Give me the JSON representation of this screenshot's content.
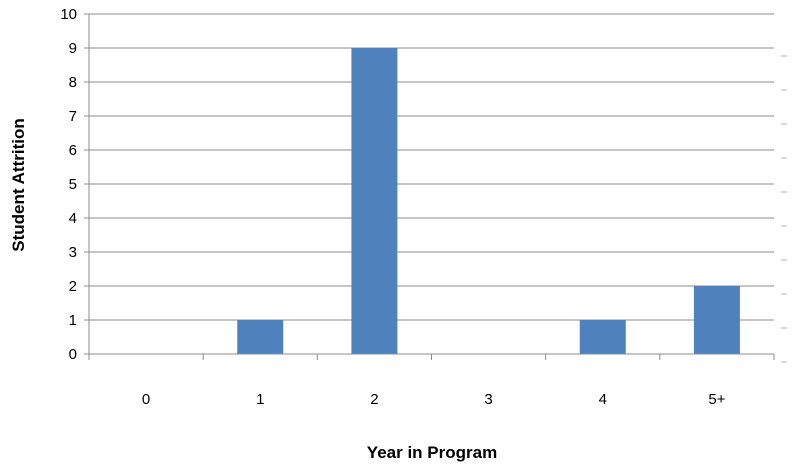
{
  "chart_data": {
    "type": "bar",
    "categories": [
      "0",
      "1",
      "2",
      "3",
      "4",
      "5+"
    ],
    "values": [
      0,
      1,
      9,
      0,
      1,
      2
    ],
    "title": "",
    "xlabel": "Year in Program",
    "ylabel": "Student Attrition",
    "ylim": [
      0,
      10
    ],
    "yticks": [
      "0",
      "1",
      "2",
      "3",
      "4",
      "5",
      "6",
      "7",
      "8",
      "9",
      "10"
    ],
    "grid": true,
    "legend": "none",
    "bar_color": "#4f81bd",
    "grid_color": "#8c8c8c"
  }
}
